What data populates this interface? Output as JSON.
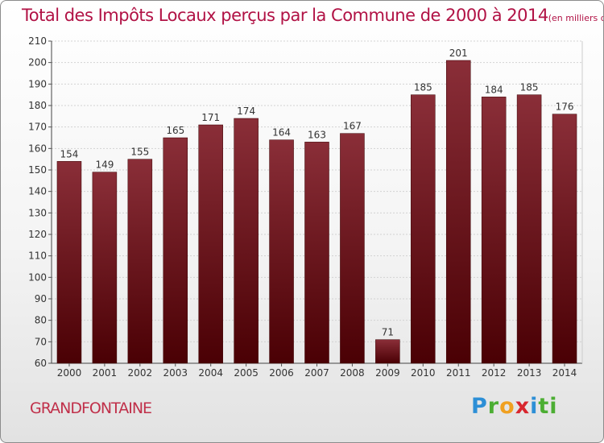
{
  "header": {
    "title": "Total des Impôts Locaux perçus par la Commune de 2000 à 2014",
    "unit": "(en milliers d'€)"
  },
  "footer": {
    "commune": "GRANDFONTAINE",
    "logo_letters": [
      "P",
      "r",
      "o",
      "x",
      "i",
      "ti"
    ]
  },
  "chart_data": {
    "type": "bar",
    "title": "Total des Impôts Locaux perçus par la Commune de 2000 à 2014",
    "ylabel": "en milliers d'€",
    "xlabel": "",
    "categories": [
      "2000",
      "2001",
      "2002",
      "2003",
      "2004",
      "2005",
      "2006",
      "2007",
      "2008",
      "2009",
      "2010",
      "2011",
      "2012",
      "2013",
      "2014"
    ],
    "values": [
      154,
      149,
      155,
      165,
      171,
      174,
      164,
      163,
      167,
      71,
      185,
      201,
      184,
      185,
      176
    ],
    "ylim": [
      60,
      210
    ],
    "yticks": [
      60,
      70,
      80,
      90,
      100,
      110,
      120,
      130,
      140,
      150,
      160,
      170,
      180,
      190,
      200,
      210
    ],
    "grid": true,
    "bar_color_top": "#8a2e38",
    "bar_color_bottom": "#4a0004"
  }
}
